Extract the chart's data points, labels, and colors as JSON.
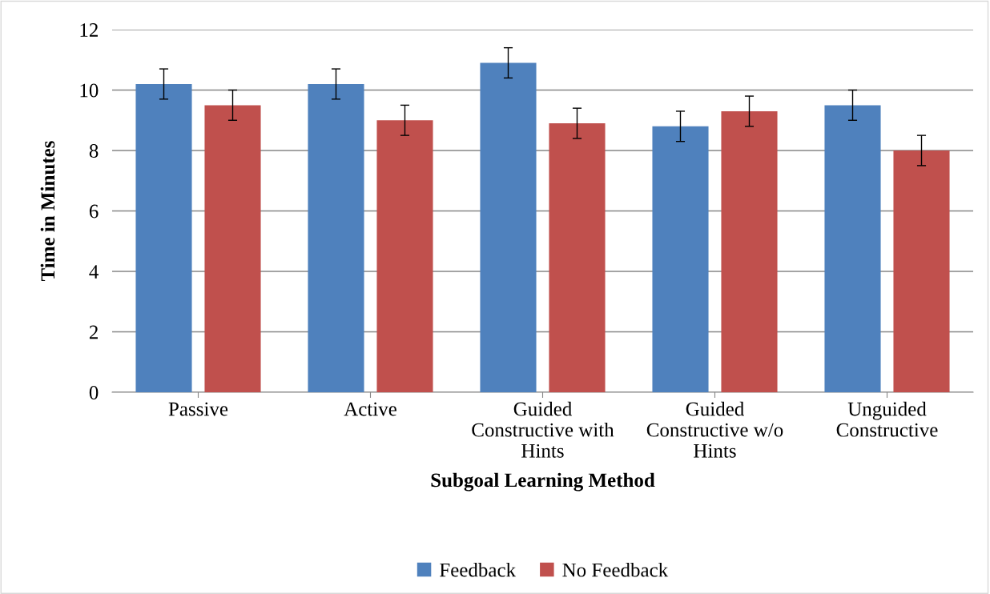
{
  "chart_data": {
    "type": "bar",
    "xlabel": "Subgoal Learning Method",
    "ylabel": "Time in Minutes",
    "categories": [
      "Passive",
      "Active",
      "Guided\nConstructive with\nHints",
      "Guided\nConstructive w/o\nHints",
      "Unguided\nConstructive"
    ],
    "series": [
      {
        "name": "Feedback",
        "color": "#4f81bd",
        "values": [
          10.2,
          10.2,
          10.9,
          8.8,
          9.5
        ],
        "errors": [
          0.5,
          0.5,
          0.5,
          0.5,
          0.5
        ]
      },
      {
        "name": "No Feedback",
        "color": "#c0504d",
        "values": [
          9.5,
          9.0,
          8.9,
          9.3,
          8.0
        ],
        "errors": [
          0.5,
          0.5,
          0.5,
          0.5,
          0.5
        ]
      }
    ],
    "ylim": [
      0,
      12
    ],
    "yticks": [
      0,
      2,
      4,
      6,
      8,
      10,
      12
    ],
    "grid": "y",
    "legend": "bottom"
  }
}
